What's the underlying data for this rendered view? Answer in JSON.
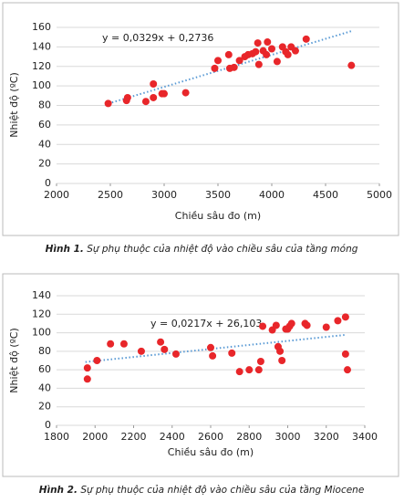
{
  "chart_data": [
    {
      "type": "scatter",
      "xlabel": "Chiều sâu đo (m)",
      "ylabel": "Nhiệt độ (ºC)",
      "equation": "y = 0,0329x + 0,2736",
      "caption_label": "Hình 1.",
      "caption": "Sự phụ thuộc của nhiệt độ vào chiều sâu của tầng móng",
      "xlim": [
        2000,
        5000
      ],
      "xticks": [
        2000,
        2500,
        3000,
        3500,
        4000,
        4500,
        5000
      ],
      "ylim": [
        0,
        160
      ],
      "yticks": [
        0,
        20,
        40,
        60,
        80,
        100,
        120,
        140,
        160
      ],
      "grid": true,
      "color": "#e8262a",
      "trend_color": "#5b9bd5",
      "x": [
        2480,
        2650,
        2660,
        2830,
        2900,
        2900,
        2980,
        3000,
        3200,
        3470,
        3500,
        3600,
        3610,
        3650,
        3700,
        3750,
        3780,
        3820,
        3850,
        3870,
        3880,
        3920,
        3950,
        3960,
        4000,
        4050,
        4100,
        4130,
        4150,
        4180,
        4220,
        4320,
        4740
      ],
      "values": [
        82,
        85,
        88,
        84,
        102,
        88,
        92,
        92,
        93,
        118,
        126,
        132,
        118,
        119,
        126,
        130,
        132,
        133,
        135,
        144,
        122,
        136,
        132,
        145,
        138,
        125,
        140,
        135,
        132,
        140,
        136,
        148,
        121
      ],
      "trendline": {
        "x": [
          2450,
          4750
        ],
        "y": [
          80.9,
          156.5
        ]
      }
    },
    {
      "type": "scatter",
      "xlabel": "Chiều sâu đo (m)",
      "ylabel": "Nhiệt độ (ºC)",
      "equation": "y = 0,0217x + 26,103",
      "caption_label": "Hình 2.",
      "caption": "Sự phụ thuộc của nhiệt độ vào chiều sâu của tầng Miocene",
      "xlim": [
        1800,
        3400
      ],
      "xticks": [
        1800,
        2000,
        2200,
        2400,
        2600,
        2800,
        3000,
        3200,
        3400
      ],
      "ylim": [
        0,
        140
      ],
      "yticks": [
        0,
        20,
        40,
        60,
        80,
        100,
        120,
        140
      ],
      "grid": true,
      "color": "#e8262a",
      "trend_color": "#5b9bd5",
      "x": [
        1960,
        1960,
        2010,
        2080,
        2150,
        2240,
        2340,
        2360,
        2420,
        2600,
        2610,
        2710,
        2750,
        2800,
        2850,
        2860,
        2870,
        2920,
        2940,
        2950,
        2960,
        2970,
        2990,
        3000,
        3010,
        3020,
        3090,
        3100,
        3200,
        3260,
        3300,
        3300,
        3310
      ],
      "values": [
        50,
        62,
        70,
        88,
        88,
        80,
        90,
        82,
        77,
        84,
        75,
        78,
        58,
        60,
        60,
        69,
        107,
        103,
        108,
        85,
        80,
        70,
        104,
        104,
        107,
        110,
        110,
        108,
        106,
        113,
        117,
        77,
        60
      ],
      "trendline": {
        "x": [
          1950,
          3300
        ],
        "y": [
          68.4,
          97.7
        ]
      }
    }
  ]
}
